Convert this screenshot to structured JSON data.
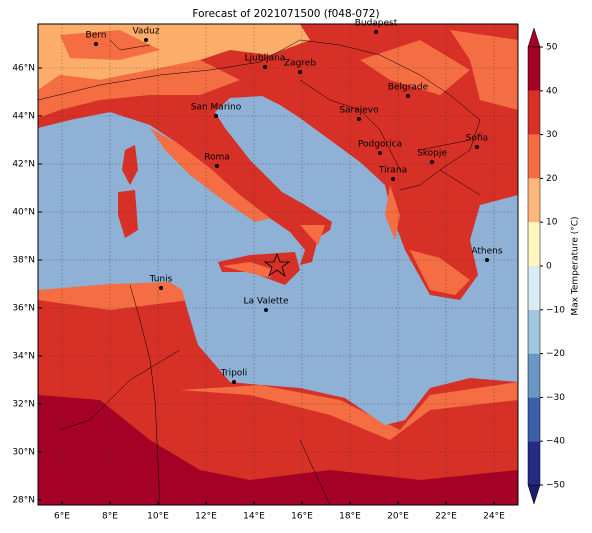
{
  "title": "Forecast of 2021071500 (f048-072)",
  "lon_labels": [
    "6°E",
    "8°E",
    "10°E",
    "12°E",
    "14°E",
    "16°E",
    "18°E",
    "20°E",
    "22°E",
    "24°E"
  ],
  "lat_labels": [
    "46°N",
    "44°N",
    "42°N",
    "40°N",
    "38°N",
    "36°N",
    "34°N",
    "32°N",
    "30°N",
    "28°N"
  ],
  "cities": [
    "Bern",
    "Vaduz",
    "Budapest",
    "Ljubljana",
    "Zagreb",
    "San Marino",
    "Belgrade",
    "Sarajevo",
    "Podgorica",
    "Sofia",
    "Roma",
    "Skopje",
    "Tirana",
    "Athens",
    "Tunis",
    "La Valette",
    "Tripoli"
  ],
  "colorbar": {
    "label": "Max Temperature (°C)",
    "lim": [
      -50,
      50
    ],
    "ticks": [
      {
        "value": -50,
        "label": "−50"
      },
      {
        "value": -40,
        "label": "−40"
      },
      {
        "value": -30,
        "label": "−30"
      },
      {
        "value": -20,
        "label": "−20"
      },
      {
        "value": -10,
        "label": "−10"
      },
      0,
      10,
      20,
      30,
      40,
      50
    ],
    "colors": [
      "#262a86",
      "#3d5ea8",
      "#6b97c4",
      "#a3c6df",
      "#d9ecf3",
      "#fff7c0",
      "#fdb77a",
      "#f46d43",
      "#d73027",
      "#a50026"
    ]
  }
}
